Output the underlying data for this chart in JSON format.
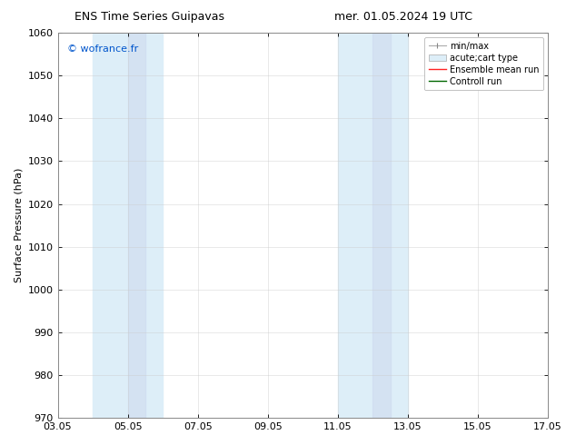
{
  "title_left": "ENS Time Series Guipavas",
  "title_right": "mer. 01.05.2024 19 UTC",
  "ylabel": "Surface Pressure (hPa)",
  "ylim": [
    970,
    1060
  ],
  "yticks": [
    970,
    980,
    990,
    1000,
    1010,
    1020,
    1030,
    1040,
    1050,
    1060
  ],
  "xlim": [
    0,
    14
  ],
  "xtick_labels": [
    "03.05",
    "05.05",
    "07.05",
    "09.05",
    "11.05",
    "13.05",
    "15.05",
    "17.05"
  ],
  "xtick_positions": [
    0,
    2,
    4,
    6,
    8,
    10,
    12,
    14
  ],
  "shaded_regions": [
    {
      "xmin": 1.0,
      "xmax": 2.0,
      "color": "#ddeeff",
      "alpha": 1.0
    },
    {
      "xmin": 2.0,
      "xmax": 3.0,
      "color": "#ccd8ee",
      "alpha": 1.0
    },
    {
      "xmin": 8.0,
      "xmax": 9.0,
      "color": "#ddeeff",
      "alpha": 1.0
    },
    {
      "xmin": 9.0,
      "xmax": 10.0,
      "color": "#ccd8ee",
      "alpha": 1.0
    }
  ],
  "watermark_text": "© wofrance.fr",
  "watermark_color": "#0055cc",
  "background_color": "#ffffff",
  "grid_color": "#cccccc",
  "grid_alpha": 0.6,
  "title_fontsize": 9,
  "ylabel_fontsize": 8,
  "tick_fontsize": 8,
  "legend_fontsize": 7,
  "watermark_fontsize": 8,
  "spine_color": "#888888"
}
